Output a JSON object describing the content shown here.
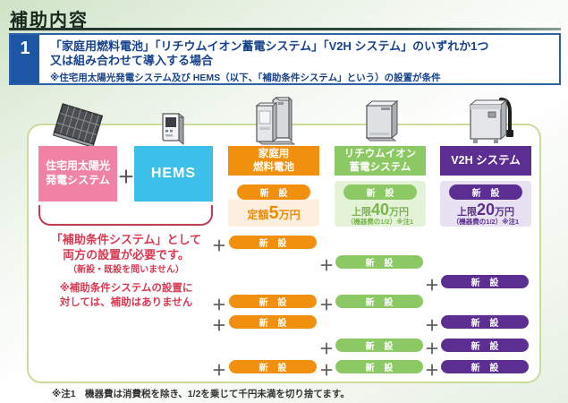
{
  "page_title": "補助内容",
  "header": {
    "number": "1",
    "line1": "「家庭用燃料電池」「リチウムイオン蓄電システム」「V2H システム」のいずれか1つ",
    "line2": "又は組み合わせて導入する場合",
    "note": "※住宅用太陽光発電システム及び HEMS（以下、「補助条件システム」という）の設置が条件"
  },
  "condition_systems": {
    "solar_line1": "住宅用太陽光",
    "solar_line2": "発電システム",
    "hems_label": "HEMS",
    "plus": "＋",
    "note1_line1": "「補助条件システム」として",
    "note1_line2": "両方の設置が必要です。",
    "note1_line3": "（新設・既設を問いません）",
    "note2_line1": "※補助条件システムの設置に",
    "note2_line2": "対しては、補助はありません"
  },
  "columns": {
    "fuelcell": {
      "label_line1": "家庭用",
      "label_line2": "燃料電池",
      "badge": "新 設",
      "price_prefix": "定額",
      "price_value": "5",
      "price_unit": "万円",
      "price_note": "",
      "color": "#f0900e",
      "light_color": "#fdeedd"
    },
    "battery": {
      "label_line1": "リチウムイオン",
      "label_line2": "蓄電システム",
      "badge": "新 設",
      "price_prefix": "上限",
      "price_value": "40",
      "price_unit": "万円",
      "price_note": "（機器費の1/2）※注1",
      "color": "#8cc863",
      "light_color": "#e4f2d8"
    },
    "v2h": {
      "label_line1": "V2H システム",
      "label_line2": "",
      "badge": "新 設",
      "price_prefix": "上限",
      "price_value": "20",
      "price_unit": "万円",
      "price_note": "（機器費の1/2）※注1",
      "color": "#5c2e91",
      "light_color": "#e7e1f2"
    }
  },
  "combinations": {
    "plus": "＋",
    "badge": "新 設",
    "rows": [
      [
        "fuelcell"
      ],
      [
        "battery"
      ],
      [
        "v2h"
      ],
      [
        "fuelcell",
        "battery"
      ],
      [
        "fuelcell",
        "v2h"
      ],
      [
        "battery",
        "v2h"
      ],
      [
        "fuelcell",
        "battery",
        "v2h"
      ]
    ]
  },
  "footnote": "※注1　機器費は消費税を除き、1/2を乗じて千円未満を切り捨てます。",
  "colors": {
    "solar_pink": "#f083a3",
    "hems_cyan": "#3cbfe9",
    "fuelcell_orange": "#f0900e",
    "battery_green": "#8cc863",
    "v2h_purple": "#5c2e91",
    "note_red": "#d93a52",
    "header_blue": "#1d56a5",
    "plus_gray": "#595757"
  }
}
